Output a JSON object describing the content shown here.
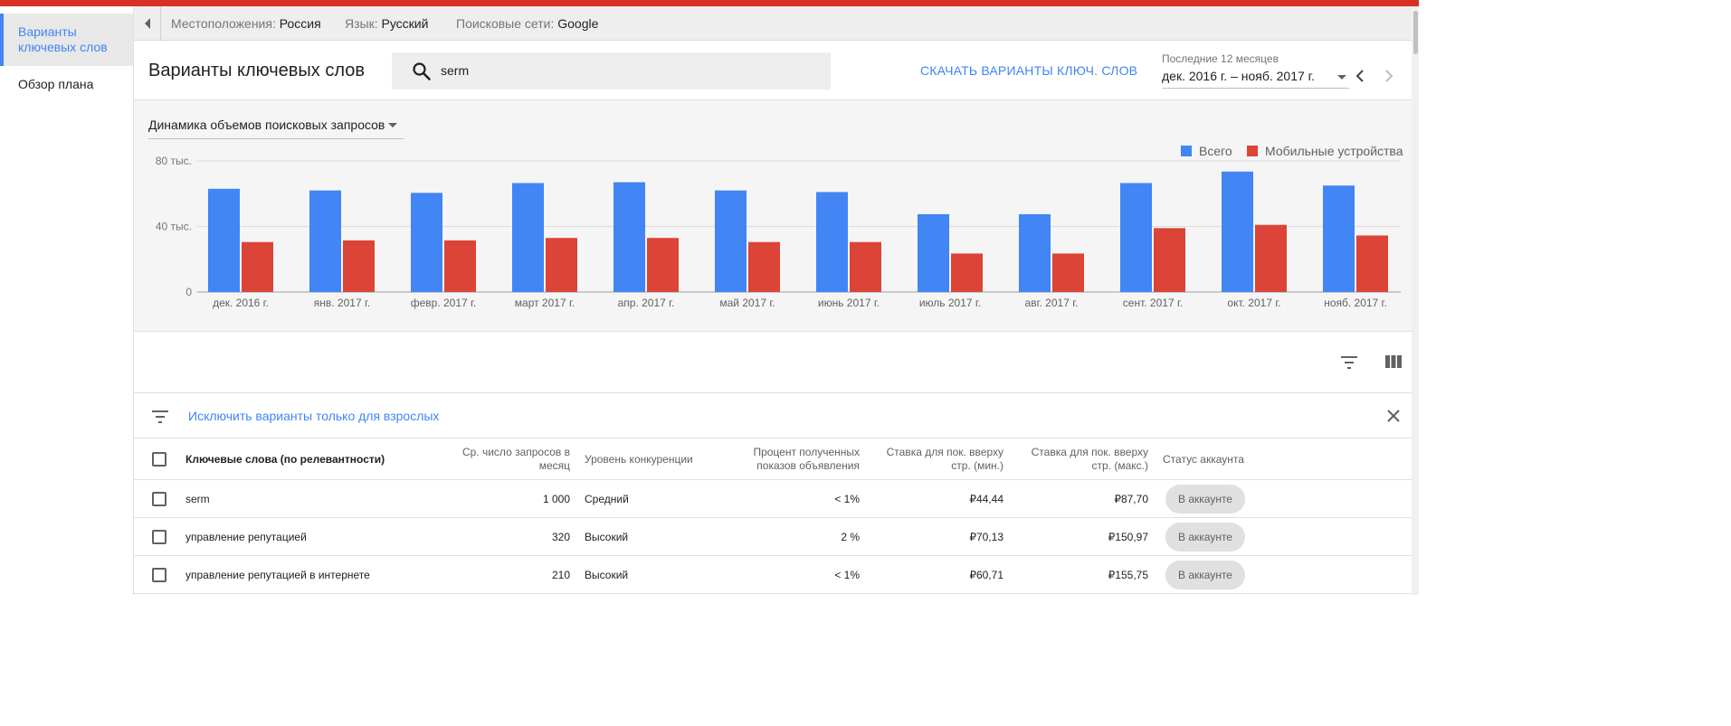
{
  "sidebar": {
    "items": [
      {
        "label": "Варианты ключевых слов",
        "active": true
      },
      {
        "label": "Обзор плана",
        "active": false
      }
    ]
  },
  "filterbar": {
    "location_label": "Местоположения:",
    "location_value": "Россия",
    "language_label": "Язык:",
    "language_value": "Русский",
    "network_label": "Поисковые сети:",
    "network_value": "Google"
  },
  "header": {
    "title": "Варианты ключевых слов",
    "search_value": "serm",
    "download_label": "СКАЧАТЬ ВАРИАНТЫ КЛЮЧ. СЛОВ",
    "range_caption": "Последние 12 месяцев",
    "range_value": "дек. 2016 г. – нояб. 2017 г."
  },
  "chart_select": "Динамика объемов поисковых запросов",
  "chart_data": {
    "type": "bar",
    "categories": [
      "дек. 2016 г.",
      "янв. 2017 г.",
      "февр. 2017 г.",
      "март 2017 г.",
      "апр. 2017 г.",
      "май 2017 г.",
      "июнь 2017 г.",
      "июль 2017 г.",
      "авг. 2017 г.",
      "сент. 2017 г.",
      "окт. 2017 г.",
      "нояб. 2017 г."
    ],
    "series": [
      {
        "name": "Всего",
        "color": "#4285f4",
        "values": [
          63000,
          62000,
          60500,
          66500,
          67000,
          62000,
          61000,
          47500,
          47500,
          66500,
          73500,
          65000
        ]
      },
      {
        "name": "Мобильные устройства",
        "color": "#db4437",
        "values": [
          30500,
          31500,
          31500,
          33000,
          33000,
          30500,
          30500,
          23500,
          23500,
          39000,
          41000,
          34500
        ]
      }
    ],
    "yticks": [
      {
        "value": 0,
        "label": "0"
      },
      {
        "value": 40000,
        "label": "40 тыс."
      },
      {
        "value": 80000,
        "label": "80 тыс."
      }
    ],
    "ylim": [
      0,
      80000
    ],
    "legend": "top-right",
    "grid": true
  },
  "adult_filter": {
    "label": "Исключить варианты только для взрослых"
  },
  "table": {
    "headers": {
      "keyword": "Ключевые слова (по релевантности)",
      "searches_1": "Ср. число запросов в",
      "searches_2": "месяц",
      "competition": "Уровень конкуренции",
      "impr_1": "Процент полученных",
      "impr_2": "показов объявления",
      "bid_min_1": "Ставка для пок. вверху",
      "bid_min_2": "стр. (мин.)",
      "bid_max_1": "Ставка для пок. вверху",
      "bid_max_2": "стр. (макс.)",
      "status": "Статус аккаунта"
    },
    "rows": [
      {
        "keyword": "serm",
        "searches": "1 000",
        "competition": "Средний",
        "impr": "< 1%",
        "bid_min": "₽44,44",
        "bid_max": "₽87,70",
        "status": "В аккаунте"
      },
      {
        "keyword": "управление репутацией",
        "searches": "320",
        "competition": "Высокий",
        "impr": "2 %",
        "bid_min": "₽70,13",
        "bid_max": "₽150,97",
        "status": "В аккаунте"
      },
      {
        "keyword": "управление репутацией в интернете",
        "searches": "210",
        "competition": "Высокий",
        "impr": "< 1%",
        "bid_min": "₽60,71",
        "bid_max": "₽155,75",
        "status": "В аккаунте"
      }
    ]
  },
  "icons": [
    "caret-left-icon",
    "search-icon",
    "dropdown-caret-icon",
    "chevron-left-icon",
    "chevron-right-icon",
    "filter-icon",
    "columns-icon",
    "close-icon",
    "checkbox-icon"
  ],
  "colors": {
    "accent": "#4285f4",
    "mobile": "#db4437",
    "top_stripe": "#d93025"
  }
}
